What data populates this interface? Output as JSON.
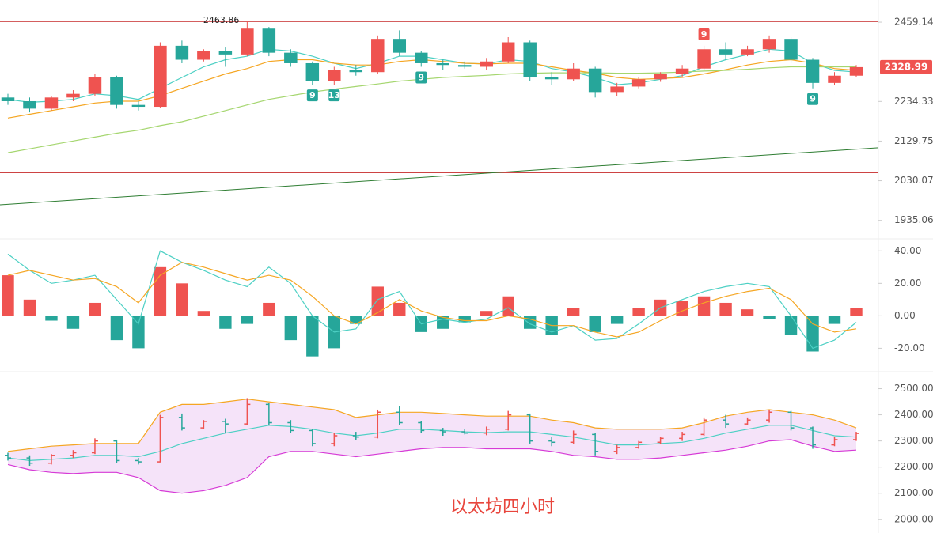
{
  "chart_data": [
    {
      "type": "candlestick",
      "log_scale": true,
      "ylim": [
        1896,
        2526
      ],
      "yticks": [
        2459.14,
        2234.33,
        2129.75,
        2030.07,
        1935.06
      ],
      "up_color": "#ef5350",
      "down_color": "#26a69a",
      "open": [
        2245,
        2235,
        2215,
        2245,
        2255,
        2300,
        2225,
        2220,
        2390,
        2350,
        2375,
        2365,
        2440,
        2370,
        2340,
        2290,
        2320,
        2315,
        2410,
        2370,
        2340,
        2335,
        2330,
        2345,
        2400,
        2300,
        2295,
        2325,
        2260,
        2275,
        2295,
        2310,
        2325,
        2380,
        2365,
        2380,
        2410,
        2350,
        2285,
        2305
      ],
      "high": [
        2255,
        2245,
        2250,
        2265,
        2310,
        2305,
        2235,
        2400,
        2405,
        2380,
        2385,
        2463.86,
        2445,
        2380,
        2345,
        2330,
        2335,
        2420,
        2435,
        2375,
        2350,
        2345,
        2355,
        2415,
        2405,
        2315,
        2340,
        2330,
        2285,
        2300,
        2315,
        2335,
        2390,
        2400,
        2390,
        2420,
        2415,
        2355,
        2315,
        2335
      ],
      "low": [
        2225,
        2205,
        2210,
        2235,
        2250,
        2215,
        2210,
        2218,
        2340,
        2345,
        2330,
        2360,
        2360,
        2330,
        2280,
        2280,
        2305,
        2310,
        2360,
        2330,
        2320,
        2325,
        2322,
        2340,
        2290,
        2280,
        2290,
        2245,
        2250,
        2270,
        2288,
        2300,
        2320,
        2350,
        2360,
        2370,
        2340,
        2270,
        2280,
        2300
      ],
      "close": [
        2235,
        2215,
        2245,
        2255,
        2300,
        2225,
        2220,
        2390,
        2350,
        2375,
        2365,
        2440,
        2370,
        2340,
        2290,
        2320,
        2315,
        2410,
        2370,
        2340,
        2335,
        2330,
        2345,
        2400,
        2300,
        2295,
        2325,
        2260,
        2275,
        2295,
        2310,
        2325,
        2380,
        2365,
        2380,
        2410,
        2350,
        2285,
        2305,
        2328.99
      ],
      "series": [
        {
          "color": "#4dd0c4",
          "values": [
            2240,
            2232,
            2235,
            2240,
            2255,
            2250,
            2240,
            2270,
            2300,
            2330,
            2350,
            2360,
            2380,
            2375,
            2360,
            2340,
            2325,
            2340,
            2360,
            2360,
            2350,
            2340,
            2338,
            2350,
            2345,
            2325,
            2315,
            2300,
            2280,
            2285,
            2295,
            2305,
            2330,
            2350,
            2365,
            2380,
            2375,
            2340,
            2320,
            2315
          ]
        },
        {
          "color": "#f5a623",
          "values": [
            2190,
            2200,
            2210,
            2220,
            2230,
            2235,
            2235,
            2250,
            2270,
            2290,
            2310,
            2325,
            2345,
            2350,
            2350,
            2340,
            2335,
            2335,
            2345,
            2350,
            2345,
            2340,
            2338,
            2340,
            2340,
            2330,
            2320,
            2312,
            2300,
            2295,
            2297,
            2300,
            2310,
            2322,
            2335,
            2345,
            2350,
            2340,
            2325,
            2320
          ]
        },
        {
          "color": "#a5d66f",
          "values": [
            2100,
            2110,
            2120,
            2130,
            2140,
            2150,
            2158,
            2170,
            2180,
            2195,
            2210,
            2225,
            2240,
            2250,
            2260,
            2268,
            2275,
            2282,
            2290,
            2295,
            2300,
            2303,
            2306,
            2310,
            2312,
            2313,
            2313,
            2313,
            2312,
            2312,
            2313,
            2315,
            2318,
            2320,
            2323,
            2327,
            2330,
            2330,
            2330,
            2330
          ]
        }
      ],
      "hlines": [
        2461,
        2050
      ],
      "hline_color": "#c62828",
      "trendline": {
        "values": [
          1973,
          2109
        ],
        "color": "#2e7d32"
      },
      "td_setups": [
        {
          "index": 14,
          "count": 9,
          "position": "below",
          "color": "#26a69a"
        },
        {
          "index": 15,
          "count": 13,
          "position": "below",
          "color": "#26a69a"
        },
        {
          "index": 19,
          "count": 9,
          "position": "below",
          "color": "#26a69a"
        },
        {
          "index": 32,
          "count": 9,
          "position": "above",
          "color": "#ef5350"
        },
        {
          "index": 37,
          "count": 9,
          "position": "below",
          "color": "#26a69a"
        }
      ]
    },
    {
      "type": "bar",
      "ylim": [
        -32,
        46
      ],
      "yticks": [
        {
          "value": 40,
          "label": "40.00"
        },
        {
          "value": 20,
          "label": "20.00"
        },
        {
          "value": 0,
          "label": "0.00"
        },
        {
          "value": -20,
          "label": "-20.00"
        }
      ],
      "pos_color": "#ef5350",
      "neg_color": "#26a69a",
      "values": [
        25,
        10,
        -3,
        -8,
        8,
        -15,
        -20,
        30,
        20,
        3,
        -8,
        -5,
        8,
        -15,
        -25,
        -20,
        -5,
        18,
        8,
        -10,
        -8,
        -4,
        3,
        12,
        -8,
        -12,
        5,
        -10,
        -5,
        5,
        10,
        9,
        12,
        8,
        4,
        -2,
        -12,
        -22,
        -5,
        5
      ],
      "series": [
        {
          "color": "#4dd0c4",
          "values": [
            38,
            28,
            20,
            22,
            25,
            10,
            -5,
            40,
            33,
            28,
            22,
            18,
            30,
            20,
            0,
            -10,
            -8,
            10,
            15,
            -5,
            -2,
            -4,
            -2,
            5,
            -5,
            -10,
            -6,
            -15,
            -14,
            -5,
            5,
            10,
            15,
            18,
            20,
            18,
            0,
            -20,
            -15,
            -4
          ]
        },
        {
          "color": "#f5a623",
          "values": [
            25,
            28,
            25,
            22,
            23,
            18,
            8,
            25,
            33,
            30,
            26,
            22,
            25,
            22,
            12,
            0,
            -5,
            2,
            10,
            3,
            -1,
            -3,
            -3,
            0,
            -2,
            -6,
            -6,
            -10,
            -13,
            -10,
            -3,
            3,
            8,
            12,
            15,
            17,
            10,
            -5,
            -10,
            -8
          ]
        }
      ]
    },
    {
      "type": "bollinger",
      "ylim": [
        1960,
        2550
      ],
      "title": "以太坊四小时",
      "title_color": "#e8453c",
      "band_fill": "#f3dcf7",
      "yticks": [
        {
          "value": 2500,
          "label": "2500.00"
        },
        {
          "value": 2400,
          "label": "2400.00"
        },
        {
          "value": 2300,
          "label": "2300.00"
        },
        {
          "value": 2200,
          "label": "2200.00"
        },
        {
          "value": 2100,
          "label": "2100.00"
        },
        {
          "value": 2000,
          "label": "2000.00"
        }
      ],
      "series": [
        {
          "color": "#f5a623",
          "values": [
            2260,
            2270,
            2280,
            2285,
            2290,
            2290,
            2290,
            2410,
            2440,
            2440,
            2450,
            2460,
            2450,
            2440,
            2430,
            2420,
            2390,
            2400,
            2410,
            2410,
            2405,
            2400,
            2395,
            2395,
            2395,
            2380,
            2370,
            2350,
            2345,
            2345,
            2345,
            2350,
            2370,
            2395,
            2410,
            2420,
            2410,
            2400,
            2380,
            2350
          ]
        },
        {
          "color": "#4dd0c4",
          "values": [
            2235,
            2225,
            2230,
            2235,
            2245,
            2245,
            2240,
            2260,
            2290,
            2310,
            2330,
            2345,
            2360,
            2355,
            2345,
            2330,
            2320,
            2330,
            2345,
            2345,
            2340,
            2335,
            2332,
            2335,
            2335,
            2325,
            2315,
            2300,
            2285,
            2285,
            2290,
            2295,
            2310,
            2330,
            2345,
            2360,
            2360,
            2340,
            2320,
            2315
          ]
        },
        {
          "color": "#d63ad6",
          "values": [
            2210,
            2190,
            2180,
            2175,
            2180,
            2180,
            2160,
            2110,
            2100,
            2110,
            2130,
            2160,
            2240,
            2260,
            2260,
            2250,
            2240,
            2250,
            2260,
            2270,
            2275,
            2275,
            2270,
            2270,
            2270,
            2260,
            2245,
            2240,
            2230,
            2230,
            2235,
            2245,
            2255,
            2265,
            2280,
            2300,
            2305,
            2280,
            2260,
            2265
          ]
        }
      ]
    }
  ]
}
